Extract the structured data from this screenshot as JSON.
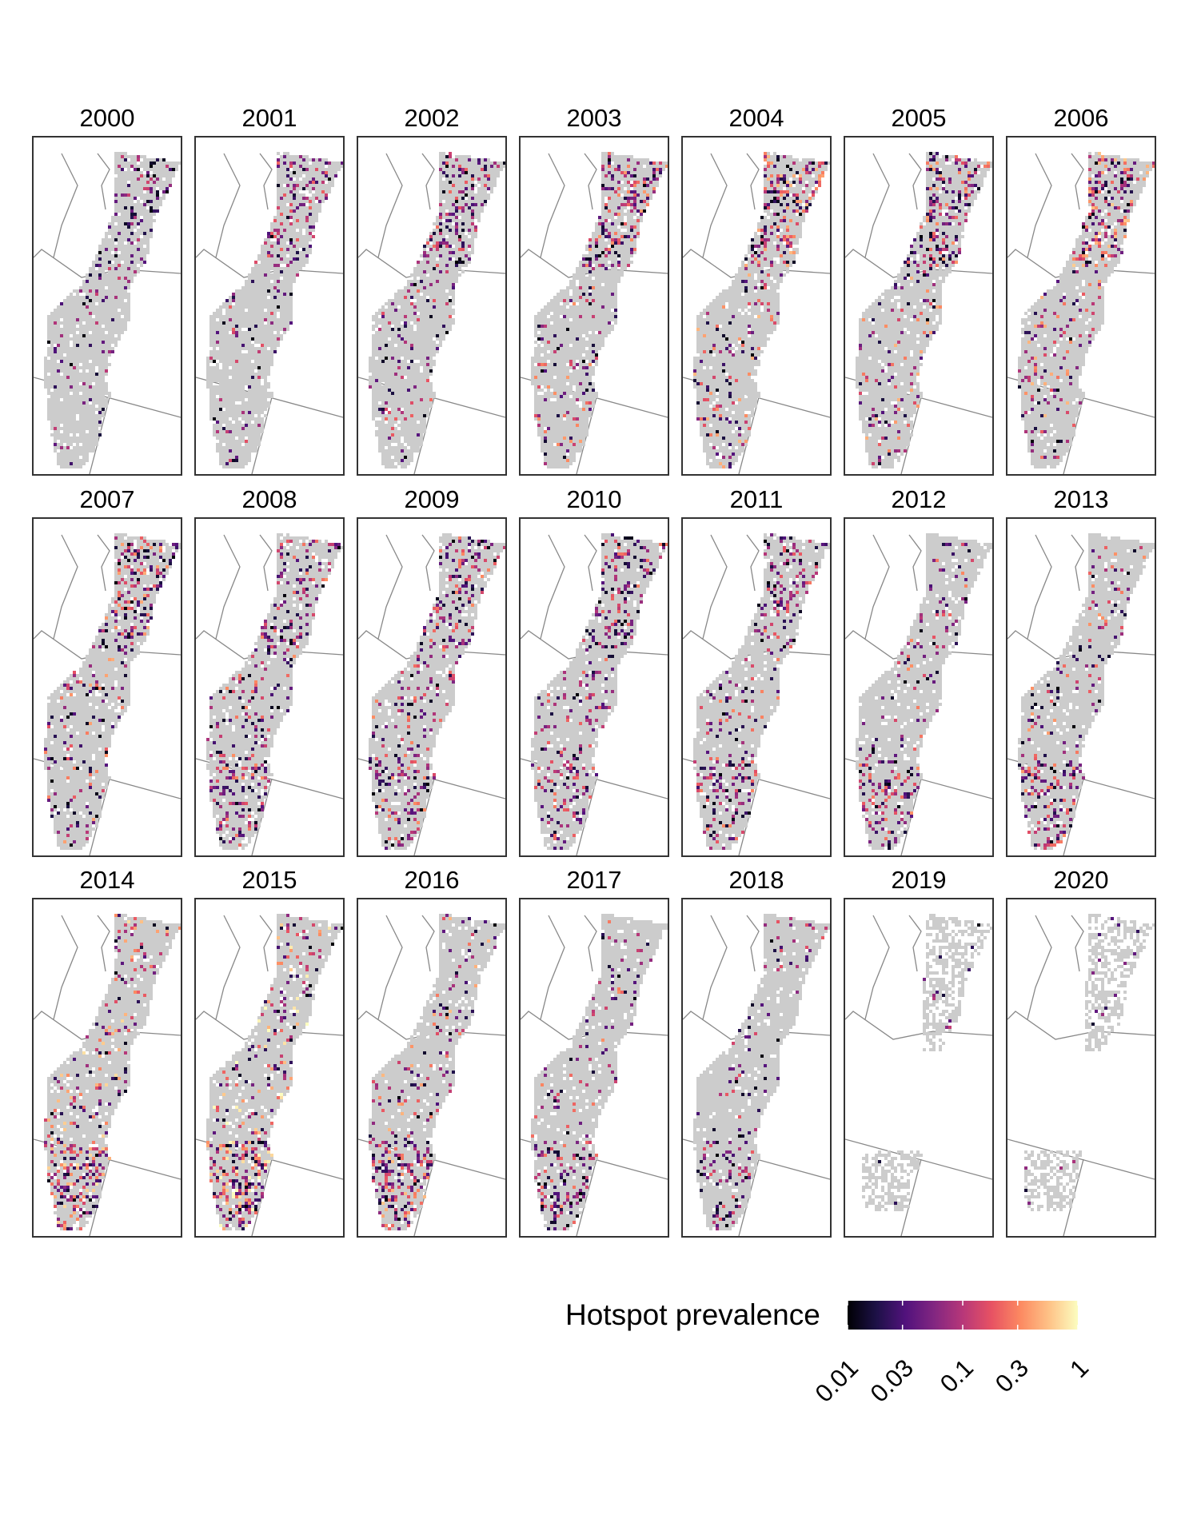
{
  "panels": [
    {
      "year": "2000",
      "level": 0.25,
      "focus": "north"
    },
    {
      "year": "2001",
      "level": 0.32,
      "focus": "north"
    },
    {
      "year": "2002",
      "level": 0.34,
      "focus": "north"
    },
    {
      "year": "2003",
      "level": 0.45,
      "focus": "north"
    },
    {
      "year": "2004",
      "level": 0.52,
      "focus": "north"
    },
    {
      "year": "2005",
      "level": 0.5,
      "focus": "north"
    },
    {
      "year": "2006",
      "level": 0.55,
      "focus": "north"
    },
    {
      "year": "2007",
      "level": 0.48,
      "focus": "north"
    },
    {
      "year": "2008",
      "level": 0.42,
      "focus": "mixed"
    },
    {
      "year": "2009",
      "level": 0.42,
      "focus": "mixed"
    },
    {
      "year": "2010",
      "level": 0.38,
      "focus": "mixed"
    },
    {
      "year": "2011",
      "level": 0.4,
      "focus": "mixed"
    },
    {
      "year": "2012",
      "level": 0.42,
      "focus": "south"
    },
    {
      "year": "2013",
      "level": 0.45,
      "focus": "south"
    },
    {
      "year": "2014",
      "level": 0.6,
      "focus": "south"
    },
    {
      "year": "2015",
      "level": 0.68,
      "focus": "south"
    },
    {
      "year": "2016",
      "level": 0.55,
      "focus": "south"
    },
    {
      "year": "2017",
      "level": 0.42,
      "focus": "south"
    },
    {
      "year": "2018",
      "level": 0.3,
      "focus": "south"
    },
    {
      "year": "2019",
      "level": 0.2,
      "focus": "sparse"
    },
    {
      "year": "2020",
      "level": 0.2,
      "focus": "sparse"
    }
  ],
  "legend": {
    "title": "Hotspot prevalence",
    "scale": "log",
    "range": [
      0.01,
      1
    ],
    "ticks": [
      "0.01",
      "0.03",
      "0.1",
      "0.3",
      "1"
    ],
    "tick_values": [
      0.01,
      0.03,
      0.1,
      0.3,
      1
    ],
    "colormap": [
      "#000004",
      "#1d1147",
      "#51127c",
      "#822681",
      "#b73779",
      "#e75263",
      "#fc8961",
      "#fec287",
      "#fcfdbf"
    ]
  },
  "colors": {
    "range_fill": "#cccccc",
    "boundary_line": "#888888",
    "frame": "#333333"
  }
}
